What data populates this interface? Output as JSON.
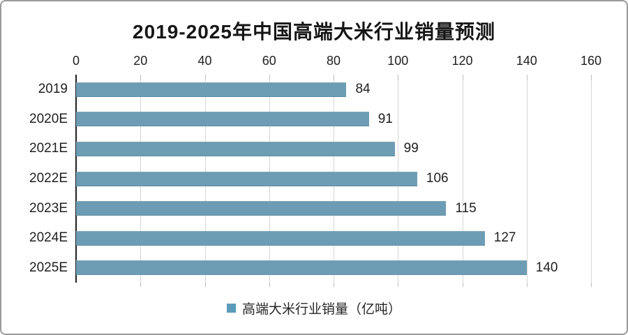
{
  "chart_data": {
    "type": "bar",
    "orientation": "horizontal",
    "title": "2019-2025年中国高端大米行业销量预测",
    "categories": [
      "2019",
      "2020E",
      "2021E",
      "2022E",
      "2023E",
      "2024E",
      "2025E"
    ],
    "values": [
      84,
      91,
      99,
      106,
      115,
      127,
      140
    ],
    "xlabel": "",
    "ylabel": "",
    "xlim": [
      0,
      160
    ],
    "x_ticks": [
      0,
      20,
      40,
      60,
      80,
      100,
      120,
      140,
      160
    ],
    "grid": "vertical-on",
    "legend": [
      "高端大米行业销量（亿吨）"
    ],
    "legend_position": "bottom",
    "colors": {
      "bar": "#6d9db4",
      "legend_marker": "#5b9cba",
      "axis_line": "#1f1f1f",
      "gridline": "#d6d6d6",
      "text": "#1f1f1f",
      "frame_border": "#9a9a9a"
    }
  }
}
